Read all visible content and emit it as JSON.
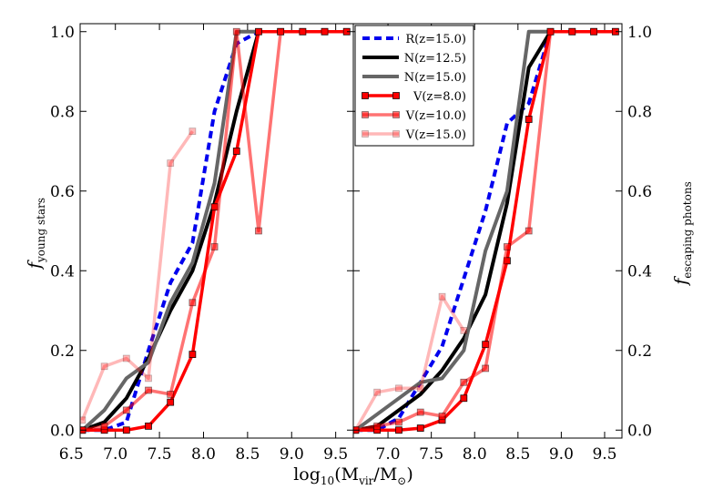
{
  "chart_data": {
    "type": "line",
    "xlabel_main": "log",
    "xlabel_sub": "10",
    "xlabel_paren_open": "(M",
    "xlabel_vir": "vir",
    "xlabel_slash": "/M",
    "xlabel_sun": "⊙",
    "xlabel_close": ")",
    "panels": [
      {
        "id": "left",
        "ylabel_main": "f",
        "ylabel_sub": "young stars",
        "xlim": [
          6.6,
          9.7
        ],
        "ylim": [
          -0.02,
          1.02
        ],
        "xticks": [
          "6.5",
          "7.0",
          "7.5",
          "8.0",
          "8.5",
          "9.0",
          "9.5"
        ],
        "xtick_values": [
          6.5,
          7.0,
          7.5,
          8.0,
          8.5,
          9.0,
          9.5
        ],
        "yticks": [
          "0.0",
          "0.2",
          "0.4",
          "0.6",
          "0.8",
          "1.0"
        ],
        "ytick_values": [
          0.0,
          0.2,
          0.4,
          0.6,
          0.8,
          1.0
        ],
        "series": [
          {
            "name": "R(z=15.0)",
            "style": "dashed",
            "color": "#0000ee",
            "width": 4,
            "marker": false,
            "opacity": 1,
            "x": [
              6.625,
              6.875,
              7.125,
              7.375,
              7.625,
              7.875,
              8.125,
              8.375,
              8.625
            ],
            "y": [
              0.0,
              0.0,
              0.02,
              0.2,
              0.37,
              0.47,
              0.8,
              0.97,
              1.0
            ]
          },
          {
            "name": "N(z=12.5)",
            "style": "solid",
            "color": "#000000",
            "width": 4,
            "marker": false,
            "opacity": 1,
            "x": [
              6.625,
              6.875,
              7.125,
              7.375,
              7.625,
              7.875,
              8.125,
              8.375,
              8.625
            ],
            "y": [
              0.0,
              0.02,
              0.08,
              0.18,
              0.3,
              0.4,
              0.57,
              0.8,
              1.0
            ]
          },
          {
            "name": "N(z=15.0)",
            "style": "solid",
            "color": "#666666",
            "width": 4,
            "marker": false,
            "opacity": 1,
            "x": [
              6.625,
              6.875,
              7.125,
              7.375,
              7.625,
              7.875,
              8.125,
              8.375,
              8.625
            ],
            "y": [
              0.0,
              0.05,
              0.13,
              0.17,
              0.32,
              0.42,
              0.62,
              1.0,
              1.0
            ]
          },
          {
            "name": "V(z=8.0)",
            "style": "solid",
            "color": "#ff0000",
            "width": 3.5,
            "marker": true,
            "opacity": 1,
            "x": [
              6.625,
              6.875,
              7.125,
              7.375,
              7.625,
              7.875,
              8.125,
              8.375,
              8.625,
              8.875,
              9.125,
              9.375,
              9.625
            ],
            "y": [
              0.0,
              0.0,
              0.0,
              0.01,
              0.07,
              0.19,
              0.56,
              0.7,
              1.0,
              1.0,
              1.0,
              1.0,
              1.0
            ]
          },
          {
            "name": "V(z=10.0)",
            "style": "solid",
            "color": "#ff0000",
            "width": 3.5,
            "marker": true,
            "opacity": 0.55,
            "x": [
              6.625,
              6.875,
              7.125,
              7.375,
              7.625,
              7.875,
              8.125,
              8.375,
              8.625,
              8.875,
              9.125,
              9.375,
              9.625
            ],
            "y": [
              0.0,
              0.01,
              0.05,
              0.1,
              0.09,
              0.32,
              0.46,
              1.0,
              0.5,
              1.0,
              1.0,
              1.0,
              1.0
            ]
          },
          {
            "name": "V(z=15.0)",
            "style": "solid",
            "color": "#ff0000",
            "width": 3.5,
            "marker": true,
            "opacity": 0.28,
            "x": [
              6.625,
              6.875,
              7.125,
              7.375,
              7.625,
              7.875
            ],
            "y": [
              0.025,
              0.16,
              0.18,
              0.13,
              0.67,
              0.75
            ]
          }
        ]
      },
      {
        "id": "right",
        "ylabel_main": "f",
        "ylabel_sub": "escaping photons",
        "xlim": [
          6.6,
          9.7
        ],
        "ylim": [
          -0.02,
          1.02
        ],
        "xticks": [
          "7.0",
          "7.5",
          "8.0",
          "8.5",
          "9.0",
          "9.5"
        ],
        "xtick_values": [
          7.0,
          7.5,
          8.0,
          8.5,
          9.0,
          9.5
        ],
        "yticks": [
          "0.0",
          "0.2",
          "0.4",
          "0.6",
          "0.8",
          "1.0"
        ],
        "ytick_values": [
          0.0,
          0.2,
          0.4,
          0.6,
          0.8,
          1.0
        ],
        "series": [
          {
            "name": "R(z=15.0)",
            "style": "dashed",
            "color": "#0000ee",
            "width": 4,
            "marker": false,
            "opacity": 1,
            "x": [
              6.625,
              6.875,
              7.125,
              7.375,
              7.625,
              7.875,
              8.125,
              8.375,
              8.625,
              8.875
            ],
            "y": [
              0.0,
              0.0,
              0.03,
              0.12,
              0.21,
              0.38,
              0.55,
              0.77,
              0.82,
              1.0
            ]
          },
          {
            "name": "N(z=12.5)",
            "style": "solid",
            "color": "#000000",
            "width": 4,
            "marker": false,
            "opacity": 1,
            "x": [
              6.625,
              6.875,
              7.125,
              7.375,
              7.625,
              7.875,
              8.125,
              8.375,
              8.625,
              8.875
            ],
            "y": [
              0.0,
              0.01,
              0.05,
              0.09,
              0.15,
              0.23,
              0.34,
              0.57,
              0.91,
              1.0
            ]
          },
          {
            "name": "N(z=15.0)",
            "style": "solid",
            "color": "#666666",
            "width": 4,
            "marker": false,
            "opacity": 1,
            "x": [
              6.625,
              6.875,
              7.125,
              7.375,
              7.625,
              7.875,
              8.125,
              8.375,
              8.625,
              8.875
            ],
            "y": [
              0.0,
              0.04,
              0.08,
              0.12,
              0.13,
              0.2,
              0.45,
              0.6,
              1.0,
              1.0
            ]
          },
          {
            "name": "V(z=8.0)",
            "style": "solid",
            "color": "#ff0000",
            "width": 3.5,
            "marker": true,
            "opacity": 1,
            "x": [
              6.625,
              6.875,
              7.125,
              7.375,
              7.625,
              7.875,
              8.125,
              8.375,
              8.625,
              8.875,
              9.125,
              9.375,
              9.625
            ],
            "y": [
              0.0,
              0.0,
              0.0,
              0.005,
              0.025,
              0.08,
              0.215,
              0.425,
              0.78,
              1.0,
              1.0,
              1.0,
              1.0
            ]
          },
          {
            "name": "V(z=10.0)",
            "style": "solid",
            "color": "#ff0000",
            "width": 3.5,
            "marker": true,
            "opacity": 0.55,
            "x": [
              6.625,
              6.875,
              7.125,
              7.375,
              7.625,
              7.875,
              8.125,
              8.375,
              8.625,
              8.875,
              9.125,
              9.375,
              9.625
            ],
            "y": [
              0.0,
              0.01,
              0.02,
              0.045,
              0.035,
              0.12,
              0.155,
              0.46,
              0.5,
              1.0,
              1.0,
              1.0,
              1.0
            ]
          },
          {
            "name": "V(z=15.0)",
            "style": "solid",
            "color": "#ff0000",
            "width": 3.5,
            "marker": true,
            "opacity": 0.28,
            "x": [
              6.625,
              6.875,
              7.125,
              7.375,
              7.625,
              7.875
            ],
            "y": [
              0.0,
              0.095,
              0.105,
              0.105,
              0.335,
              0.25
            ]
          }
        ]
      }
    ],
    "legend": {
      "placement": "top-left of right panel",
      "entries": [
        "R(z=15.0)",
        "N(z=12.5)",
        "N(z=15.0)",
        "V(z=8.0)",
        "V(z=10.0)",
        "V(z=15.0)"
      ]
    }
  }
}
